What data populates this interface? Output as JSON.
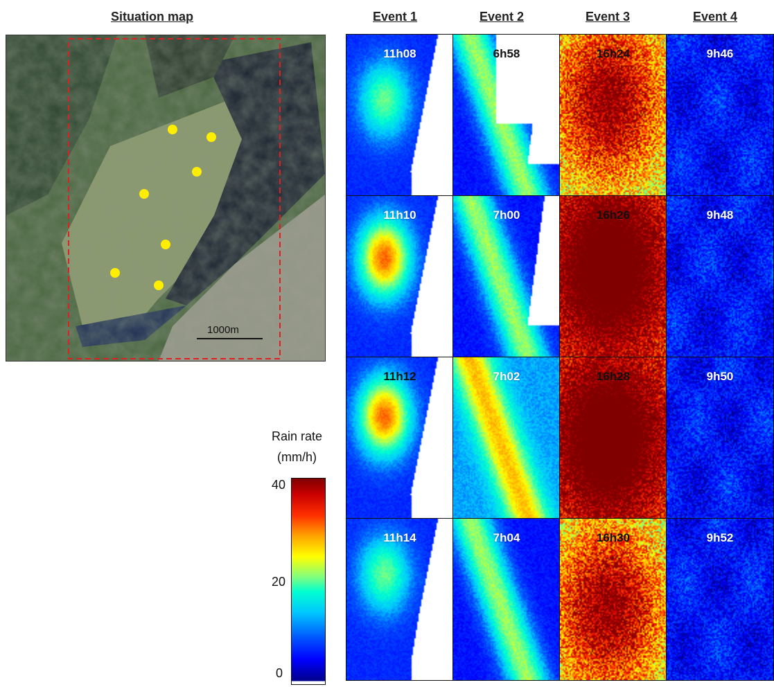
{
  "map": {
    "title": "Situation map",
    "scale_label": "1000m",
    "markers": [
      {
        "name": "station-1"
      },
      {
        "name": "station-2"
      },
      {
        "name": "station-3"
      },
      {
        "name": "station-4"
      },
      {
        "name": "station-5"
      },
      {
        "name": "station-6"
      },
      {
        "name": "station-7"
      }
    ],
    "marker_color": "#ffee00",
    "frame_color": "#e02020"
  },
  "events": [
    {
      "title": "Event 1",
      "times": [
        "11h08",
        "11h10",
        "11h12",
        "11h14"
      ]
    },
    {
      "title": "Event 2",
      "times": [
        "6h58",
        "7h00",
        "7h02",
        "7h04"
      ]
    },
    {
      "title": "Event 3",
      "times": [
        "16h24",
        "16h26",
        "16h28",
        "16h30"
      ]
    },
    {
      "title": "Event 4",
      "times": [
        "9h46",
        "9h48",
        "9h50",
        "9h52"
      ]
    }
  ],
  "colorbar": {
    "label_line1": "Rain rate",
    "label_line2": "(mm/h)",
    "ticks": [
      "40",
      "20",
      "0"
    ]
  }
}
